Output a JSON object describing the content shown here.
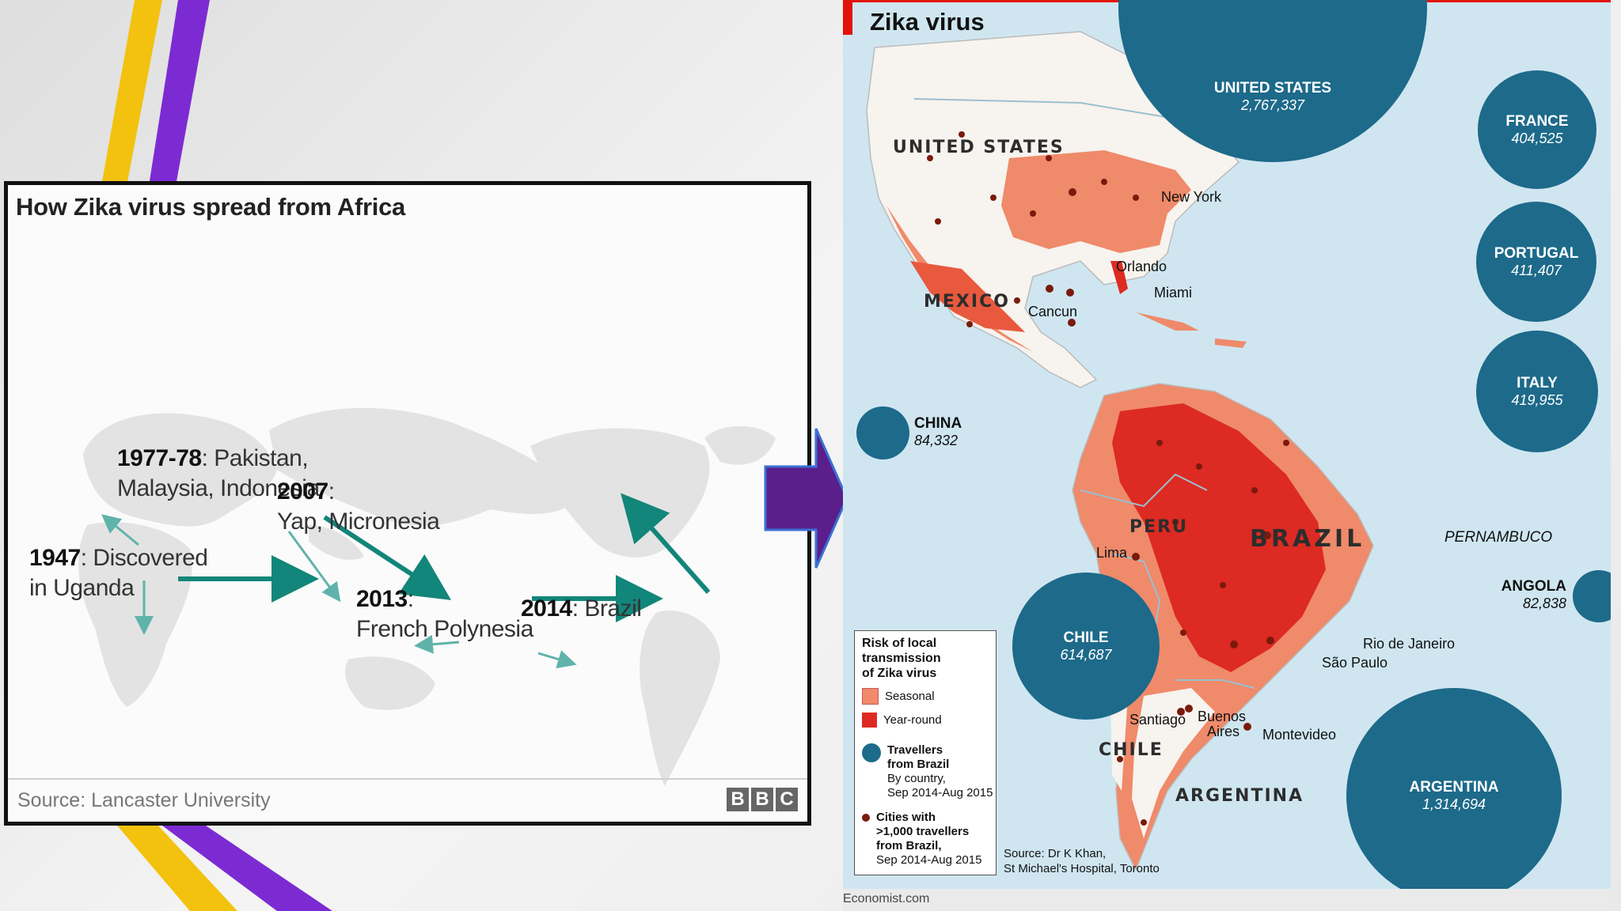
{
  "bbc": {
    "title": "How Zika virus spread from Africa",
    "events": [
      {
        "year": "1947",
        "text": ": Discovered",
        "text2": "in Uganda"
      },
      {
        "year": "1977-78",
        "text": ": Pakistan,",
        "text2": "Malaysia, Indonesia"
      },
      {
        "year": "2007",
        "text": ":",
        "text2": "Yap, Micronesia"
      },
      {
        "year": "2013",
        "text": ":",
        "text2": "French Polynesia"
      },
      {
        "year": "2014",
        "text": ": Brazil"
      }
    ],
    "source": "Source: Lancaster University",
    "logo": [
      "B",
      "B",
      "C"
    ]
  },
  "economist": {
    "title": "Zika virus",
    "bubbles": [
      {
        "name": "UNITED STATES",
        "value": "2,767,337"
      },
      {
        "name": "FRANCE",
        "value": "404,525"
      },
      {
        "name": "PORTUGAL",
        "value": "411,407"
      },
      {
        "name": "ITALY",
        "value": "419,955"
      },
      {
        "name": "CHINA",
        "value": "84,332"
      },
      {
        "name": "ANGOLA",
        "value": "82,838"
      },
      {
        "name": "CHILE",
        "value": "614,687"
      },
      {
        "name": "ARGENTINA",
        "value": "1,314,694"
      }
    ],
    "countries": [
      "UNITED STATES",
      "MEXICO",
      "PERU",
      "BRAZIL",
      "CHILE",
      "ARGENTINA"
    ],
    "cities": {
      "new_york": "New York",
      "orlando": "Orlando",
      "miami": "Miami",
      "cancun": "Cancun",
      "lima": "Lima",
      "pernambuco": "PERNAMBUCO",
      "rio": "Rio de Janeiro",
      "sao_paulo": "São Paulo",
      "santiago": "Santiago",
      "buenos": "Buenos",
      "aires": "Aires",
      "montevideo": "Montevideo"
    },
    "legend": {
      "title": [
        "Risk of local",
        "transmission",
        "of Zika virus"
      ],
      "seasonal": "Seasonal",
      "year_round": "Year-round",
      "travellers": [
        "Travellers",
        "from Brazil"
      ],
      "travellers_sub": [
        "By country,",
        "Sep 2014-Aug 2015"
      ],
      "cities": [
        ">1,000 travellers",
        "from Brazil,"
      ],
      "cities_head": "Cities with",
      "cities_sub": "Sep 2014-Aug 2015"
    },
    "source": [
      "Source: Dr K Khan,",
      "St Michael's Hospital, Toronto"
    ],
    "footer": "Economist.com",
    "colors": {
      "seasonal": "#ef8a6a",
      "year_round": "#dd2a22",
      "bubble": "#1d6a8a",
      "sea": "#cfe6f1"
    }
  }
}
